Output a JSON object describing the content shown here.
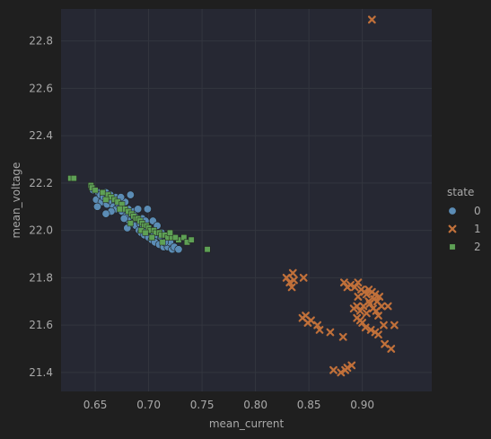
{
  "chart_data": {
    "type": "scatter",
    "xlabel": "mean_current",
    "ylabel": "mean_voltage",
    "xlim": [
      0.618,
      0.965
    ],
    "ylim": [
      21.32,
      22.935
    ],
    "xticks": [
      0.65,
      0.7,
      0.75,
      0.8,
      0.85,
      0.9
    ],
    "xtick_labels": [
      "0.65",
      "0.70",
      "0.75",
      "0.80",
      "0.85",
      "0.90"
    ],
    "yticks": [
      21.4,
      21.6,
      21.8,
      22.0,
      22.2,
      22.4,
      22.6,
      22.8
    ],
    "ytick_labels": [
      "21.4",
      "21.6",
      "21.8",
      "22.0",
      "22.2",
      "22.4",
      "22.6",
      "22.8"
    ],
    "grid": true,
    "legend": {
      "title": "state",
      "placement": "right"
    },
    "colors": {
      "background": "#1f1f1f",
      "plot_area": "#262833",
      "grid": "#33363f",
      "text": "#a9a9a9"
    },
    "series": [
      {
        "name": "0",
        "marker": "circle",
        "color": "#5b8cb5",
        "points": [
          [
            0.648,
            22.17
          ],
          [
            0.651,
            22.13
          ],
          [
            0.653,
            22.16
          ],
          [
            0.655,
            22.15
          ],
          [
            0.656,
            22.12
          ],
          [
            0.658,
            22.14
          ],
          [
            0.66,
            22.16
          ],
          [
            0.661,
            22.11
          ],
          [
            0.663,
            22.13
          ],
          [
            0.664,
            22.15
          ],
          [
            0.666,
            22.12
          ],
          [
            0.667,
            22.1
          ],
          [
            0.669,
            22.14
          ],
          [
            0.67,
            22.09
          ],
          [
            0.672,
            22.11
          ],
          [
            0.673,
            22.13
          ],
          [
            0.675,
            22.08
          ],
          [
            0.676,
            22.1
          ],
          [
            0.678,
            22.12
          ],
          [
            0.679,
            22.06
          ],
          [
            0.681,
            22.09
          ],
          [
            0.682,
            22.04
          ],
          [
            0.683,
            22.15
          ],
          [
            0.684,
            22.07
          ],
          [
            0.685,
            22.03
          ],
          [
            0.687,
            22.06
          ],
          [
            0.688,
            22.02
          ],
          [
            0.689,
            22.05
          ],
          [
            0.691,
            22.0
          ],
          [
            0.692,
            22.03
          ],
          [
            0.693,
            21.99
          ],
          [
            0.695,
            22.02
          ],
          [
            0.696,
            21.98
          ],
          [
            0.698,
            22.01
          ],
          [
            0.699,
            22.09
          ],
          [
            0.7,
            21.97
          ],
          [
            0.702,
            22.0
          ],
          [
            0.703,
            21.96
          ],
          [
            0.705,
            21.99
          ],
          [
            0.706,
            21.95
          ],
          [
            0.708,
            21.98
          ],
          [
            0.71,
            21.94
          ],
          [
            0.712,
            21.97
          ],
          [
            0.714,
            21.93
          ],
          [
            0.716,
            21.96
          ],
          [
            0.718,
            21.93
          ],
          [
            0.72,
            21.95
          ],
          [
            0.722,
            21.92
          ],
          [
            0.724,
            21.93
          ],
          [
            0.728,
            21.92
          ],
          [
            0.665,
            22.08
          ],
          [
            0.677,
            22.05
          ],
          [
            0.686,
            22.08
          ],
          [
            0.694,
            22.05
          ],
          [
            0.704,
            22.04
          ],
          [
            0.712,
            21.99
          ],
          [
            0.66,
            22.07
          ],
          [
            0.69,
            22.09
          ],
          [
            0.708,
            22.02
          ],
          [
            0.68,
            22.01
          ],
          [
            0.652,
            22.1
          ],
          [
            0.674,
            22.14
          ],
          [
            0.697,
            22.04
          ],
          [
            0.715,
            21.95
          ]
        ]
      },
      {
        "name": "1",
        "marker": "x",
        "color": "#c0703a",
        "points": [
          [
            0.909,
            22.89
          ],
          [
            0.829,
            21.8
          ],
          [
            0.832,
            21.78
          ],
          [
            0.834,
            21.76
          ],
          [
            0.835,
            21.82
          ],
          [
            0.836,
            21.79
          ],
          [
            0.845,
            21.8
          ],
          [
            0.844,
            21.63
          ],
          [
            0.847,
            21.64
          ],
          [
            0.849,
            21.61
          ],
          [
            0.852,
            21.62
          ],
          [
            0.858,
            21.6
          ],
          [
            0.86,
            21.58
          ],
          [
            0.87,
            21.57
          ],
          [
            0.873,
            21.41
          ],
          [
            0.88,
            21.4
          ],
          [
            0.882,
            21.55
          ],
          [
            0.884,
            21.41
          ],
          [
            0.886,
            21.42
          ],
          [
            0.89,
            21.43
          ],
          [
            0.883,
            21.78
          ],
          [
            0.886,
            21.76
          ],
          [
            0.889,
            21.77
          ],
          [
            0.893,
            21.76
          ],
          [
            0.896,
            21.78
          ],
          [
            0.899,
            21.75
          ],
          [
            0.902,
            21.74
          ],
          [
            0.904,
            21.73
          ],
          [
            0.906,
            21.75
          ],
          [
            0.909,
            21.74
          ],
          [
            0.911,
            21.71
          ],
          [
            0.914,
            21.7
          ],
          [
            0.916,
            21.72
          ],
          [
            0.892,
            21.67
          ],
          [
            0.895,
            21.68
          ],
          [
            0.898,
            21.66
          ],
          [
            0.901,
            21.68
          ],
          [
            0.904,
            21.65
          ],
          [
            0.907,
            21.69
          ],
          [
            0.91,
            21.67
          ],
          [
            0.913,
            21.66
          ],
          [
            0.918,
            21.68
          ],
          [
            0.92,
            21.6
          ],
          [
            0.924,
            21.68
          ],
          [
            0.895,
            21.63
          ],
          [
            0.898,
            21.62
          ],
          [
            0.903,
            21.59
          ],
          [
            0.908,
            21.58
          ],
          [
            0.912,
            21.57
          ],
          [
            0.915,
            21.56
          ],
          [
            0.921,
            21.52
          ],
          [
            0.927,
            21.5
          ],
          [
            0.93,
            21.6
          ],
          [
            0.896,
            21.72
          ],
          [
            0.906,
            21.7
          ],
          [
            0.912,
            21.73
          ],
          [
            0.9,
            21.61
          ],
          [
            0.915,
            21.64
          ]
        ]
      },
      {
        "name": "2",
        "marker": "square",
        "color": "#5ea055",
        "points": [
          [
            0.627,
            22.22
          ],
          [
            0.63,
            22.22
          ],
          [
            0.646,
            22.19
          ],
          [
            0.647,
            22.18
          ],
          [
            0.65,
            22.17
          ],
          [
            0.657,
            22.16
          ],
          [
            0.662,
            22.15
          ],
          [
            0.665,
            22.14
          ],
          [
            0.668,
            22.13
          ],
          [
            0.671,
            22.12
          ],
          [
            0.675,
            22.11
          ],
          [
            0.678,
            22.09
          ],
          [
            0.681,
            22.08
          ],
          [
            0.684,
            22.07
          ],
          [
            0.686,
            22.06
          ],
          [
            0.688,
            22.05
          ],
          [
            0.69,
            22.05
          ],
          [
            0.692,
            22.04
          ],
          [
            0.694,
            22.03
          ],
          [
            0.696,
            22.02
          ],
          [
            0.698,
            22.02
          ],
          [
            0.7,
            22.01
          ],
          [
            0.702,
            22.0
          ],
          [
            0.705,
            22.0
          ],
          [
            0.707,
            21.99
          ],
          [
            0.71,
            21.99
          ],
          [
            0.712,
            21.98
          ],
          [
            0.715,
            21.98
          ],
          [
            0.718,
            21.97
          ],
          [
            0.722,
            21.97
          ],
          [
            0.728,
            21.96
          ],
          [
            0.733,
            21.97
          ],
          [
            0.736,
            21.95
          ],
          [
            0.74,
            21.96
          ],
          [
            0.755,
            21.92
          ],
          [
            0.683,
            22.03
          ],
          [
            0.693,
            22.0
          ],
          [
            0.703,
            21.97
          ],
          [
            0.713,
            21.95
          ],
          [
            0.725,
            21.97
          ],
          [
            0.66,
            22.13
          ],
          [
            0.673,
            22.09
          ],
          [
            0.697,
            21.99
          ],
          [
            0.72,
            21.99
          ]
        ]
      }
    ]
  }
}
